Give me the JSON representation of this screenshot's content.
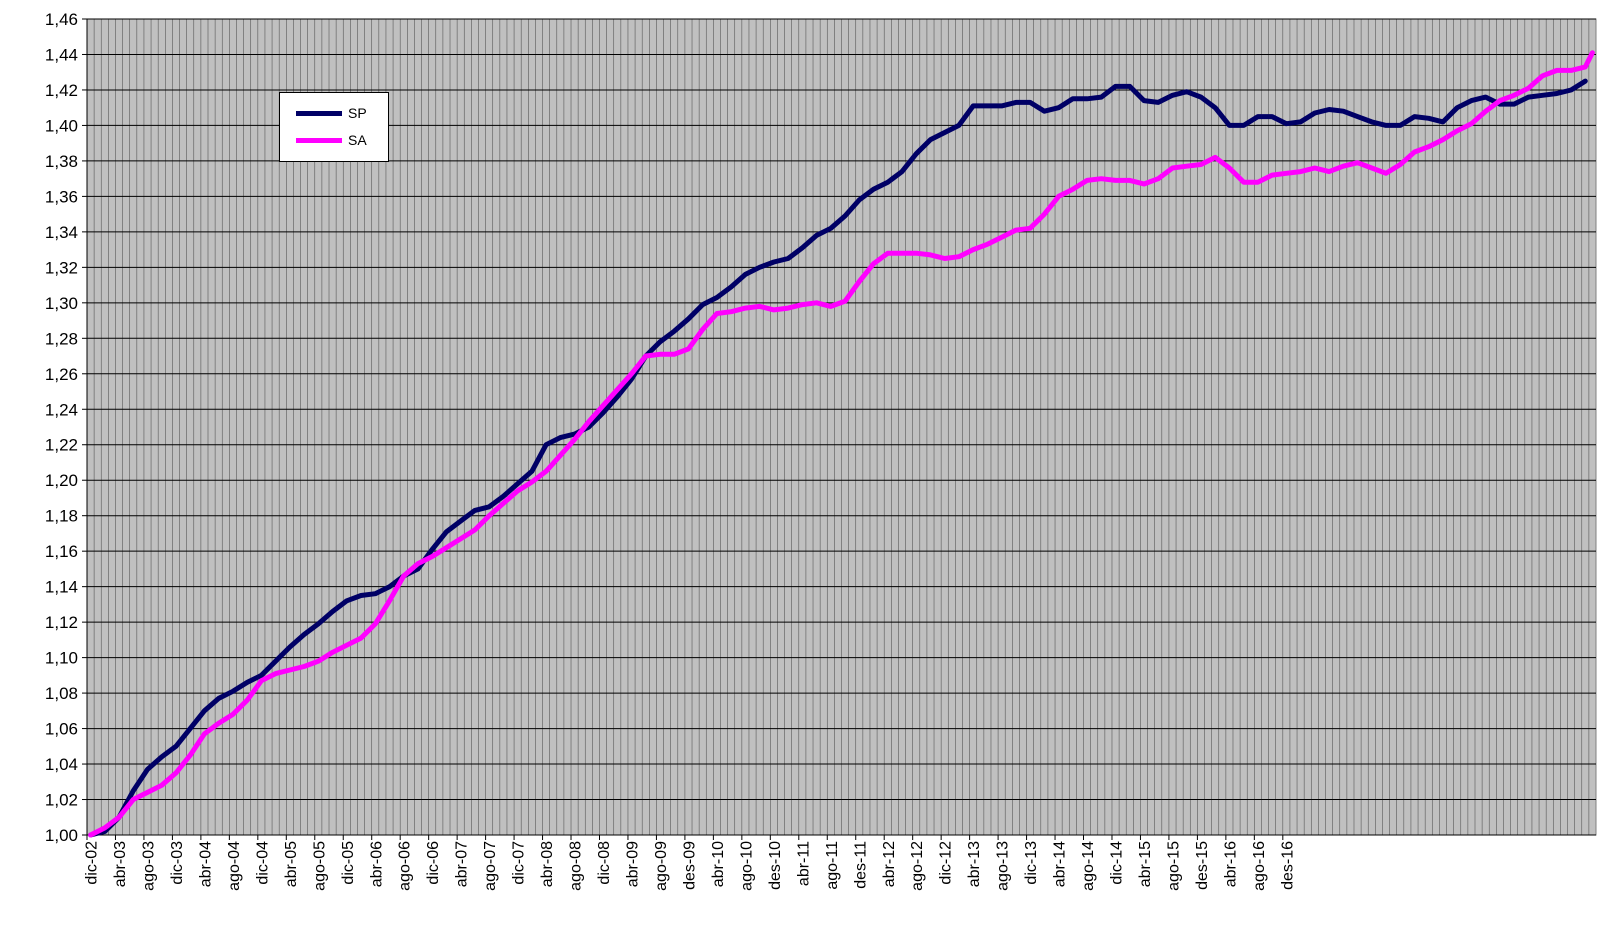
{
  "chart_data": {
    "type": "line",
    "title": "",
    "xlabel": "",
    "ylabel": "",
    "ylim": [
      1.0,
      1.46
    ],
    "y_ticks": [
      "1,00",
      "1,02",
      "1,04",
      "1,06",
      "1,08",
      "1,10",
      "1,12",
      "1,14",
      "1,16",
      "1,18",
      "1,20",
      "1,22",
      "1,24",
      "1,26",
      "1,28",
      "1,30",
      "1,32",
      "1,34",
      "1,36",
      "1,38",
      "1,40",
      "1,42",
      "1,44",
      "1,46"
    ],
    "x_tick_labels": [
      "dic-02",
      "abr-03",
      "ago-03",
      "dic-03",
      "abr-04",
      "ago-04",
      "dic-04",
      "abr-05",
      "ago-05",
      "dic-05",
      "abr-06",
      "ago-06",
      "dic-06",
      "abr-07",
      "ago-07",
      "dic-07",
      "abr-08",
      "ago-08",
      "dic-08",
      "abr-09",
      "ago-09",
      "des-09",
      "abr-10",
      "ago-10",
      "des-10",
      "abr-11",
      "ago-11",
      "des-11",
      "abr-12",
      "ago-12",
      "dic-12",
      "abr-13",
      "ago-13",
      "dic-13",
      "abr-14",
      "ago-14",
      "dic-14",
      "abr-15",
      "ago-15",
      "des-15",
      "abr-16",
      "ago-16",
      "des-16"
    ],
    "grid": true,
    "background": "#c0c0c0",
    "legend_position": "top-left",
    "series": [
      {
        "name": "SP",
        "color": "#000066",
        "points": [
          [
            0,
            1.0
          ],
          [
            2,
            1.002
          ],
          [
            4,
            1.01
          ],
          [
            6,
            1.025
          ],
          [
            8,
            1.037
          ],
          [
            10,
            1.044
          ],
          [
            12,
            1.05
          ],
          [
            14,
            1.06
          ],
          [
            16,
            1.07
          ],
          [
            18,
            1.077
          ],
          [
            20,
            1.081
          ],
          [
            22,
            1.086
          ],
          [
            24,
            1.09
          ],
          [
            26,
            1.098
          ],
          [
            28,
            1.106
          ],
          [
            30,
            1.113
          ],
          [
            32,
            1.119
          ],
          [
            34,
            1.126
          ],
          [
            36,
            1.132
          ],
          [
            38,
            1.135
          ],
          [
            40,
            1.136
          ],
          [
            42,
            1.14
          ],
          [
            44,
            1.146
          ],
          [
            46,
            1.15
          ],
          [
            48,
            1.161
          ],
          [
            50,
            1.171
          ],
          [
            52,
            1.177
          ],
          [
            54,
            1.183
          ],
          [
            56,
            1.185
          ],
          [
            58,
            1.191
          ],
          [
            60,
            1.198
          ],
          [
            62,
            1.205
          ],
          [
            64,
            1.22
          ],
          [
            66,
            1.224
          ],
          [
            68,
            1.226
          ],
          [
            70,
            1.23
          ],
          [
            72,
            1.238
          ],
          [
            74,
            1.247
          ],
          [
            76,
            1.257
          ],
          [
            78,
            1.27
          ],
          [
            80,
            1.278
          ],
          [
            82,
            1.284
          ],
          [
            84,
            1.291
          ],
          [
            86,
            1.299
          ],
          [
            88,
            1.303
          ],
          [
            90,
            1.309
          ],
          [
            92,
            1.316
          ],
          [
            94,
            1.32
          ],
          [
            96,
            1.323
          ],
          [
            98,
            1.325
          ],
          [
            100,
            1.331
          ],
          [
            102,
            1.338
          ],
          [
            104,
            1.342
          ],
          [
            106,
            1.349
          ],
          [
            108,
            1.358
          ],
          [
            110,
            1.364
          ],
          [
            112,
            1.368
          ],
          [
            114,
            1.374
          ],
          [
            116,
            1.384
          ],
          [
            118,
            1.392
          ],
          [
            120,
            1.396
          ],
          [
            122,
            1.4
          ],
          [
            124,
            1.411
          ],
          [
            126,
            1.411
          ],
          [
            128,
            1.411
          ],
          [
            130,
            1.413
          ],
          [
            132,
            1.413
          ],
          [
            134,
            1.408
          ],
          [
            136,
            1.41
          ],
          [
            138,
            1.415
          ],
          [
            140,
            1.415
          ],
          [
            142,
            1.416
          ],
          [
            144,
            1.422
          ],
          [
            146,
            1.422
          ],
          [
            148,
            1.414
          ],
          [
            150,
            1.413
          ],
          [
            152,
            1.417
          ],
          [
            154,
            1.419
          ],
          [
            156,
            1.416
          ],
          [
            158,
            1.41
          ],
          [
            160,
            1.4
          ],
          [
            162,
            1.4
          ],
          [
            164,
            1.405
          ],
          [
            166,
            1.405
          ],
          [
            168,
            1.401
          ],
          [
            170,
            1.402
          ],
          [
            172,
            1.407
          ],
          [
            174,
            1.409
          ],
          [
            176,
            1.408
          ],
          [
            178,
            1.405
          ],
          [
            180,
            1.402
          ],
          [
            182,
            1.4
          ],
          [
            184,
            1.4
          ],
          [
            186,
            1.405
          ],
          [
            188,
            1.404
          ],
          [
            190,
            1.402
          ],
          [
            192,
            1.41
          ],
          [
            194,
            1.414
          ],
          [
            196,
            1.416
          ],
          [
            198,
            1.412
          ],
          [
            200,
            1.412
          ],
          [
            202,
            1.416
          ],
          [
            204,
            1.417
          ],
          [
            206,
            1.418
          ],
          [
            208,
            1.42
          ],
          [
            210,
            1.425
          ]
        ]
      },
      {
        "name": "SA",
        "color": "#ff00ff",
        "points": [
          [
            0,
            1.0
          ],
          [
            2,
            1.004
          ],
          [
            4,
            1.01
          ],
          [
            6,
            1.02
          ],
          [
            8,
            1.024
          ],
          [
            10,
            1.028
          ],
          [
            12,
            1.035
          ],
          [
            14,
            1.045
          ],
          [
            16,
            1.057
          ],
          [
            18,
            1.063
          ],
          [
            20,
            1.068
          ],
          [
            22,
            1.076
          ],
          [
            24,
            1.087
          ],
          [
            26,
            1.091
          ],
          [
            28,
            1.093
          ],
          [
            30,
            1.095
          ],
          [
            32,
            1.098
          ],
          [
            34,
            1.103
          ],
          [
            36,
            1.107
          ],
          [
            38,
            1.111
          ],
          [
            40,
            1.119
          ],
          [
            42,
            1.132
          ],
          [
            44,
            1.146
          ],
          [
            46,
            1.153
          ],
          [
            48,
            1.157
          ],
          [
            50,
            1.162
          ],
          [
            52,
            1.167
          ],
          [
            54,
            1.172
          ],
          [
            56,
            1.18
          ],
          [
            58,
            1.187
          ],
          [
            60,
            1.194
          ],
          [
            62,
            1.199
          ],
          [
            64,
            1.205
          ],
          [
            66,
            1.214
          ],
          [
            68,
            1.223
          ],
          [
            70,
            1.233
          ],
          [
            72,
            1.242
          ],
          [
            74,
            1.251
          ],
          [
            76,
            1.26
          ],
          [
            78,
            1.27
          ],
          [
            80,
            1.271
          ],
          [
            82,
            1.271
          ],
          [
            84,
            1.274
          ],
          [
            86,
            1.285
          ],
          [
            88,
            1.294
          ],
          [
            90,
            1.295
          ],
          [
            92,
            1.297
          ],
          [
            94,
            1.298
          ],
          [
            96,
            1.296
          ],
          [
            98,
            1.297
          ],
          [
            100,
            1.299
          ],
          [
            102,
            1.3
          ],
          [
            104,
            1.298
          ],
          [
            106,
            1.301
          ],
          [
            108,
            1.312
          ],
          [
            110,
            1.322
          ],
          [
            112,
            1.328
          ],
          [
            114,
            1.328
          ],
          [
            116,
            1.328
          ],
          [
            118,
            1.327
          ],
          [
            120,
            1.325
          ],
          [
            122,
            1.326
          ],
          [
            124,
            1.33
          ],
          [
            126,
            1.333
          ],
          [
            128,
            1.337
          ],
          [
            130,
            1.341
          ],
          [
            132,
            1.342
          ],
          [
            134,
            1.35
          ],
          [
            136,
            1.36
          ],
          [
            138,
            1.364
          ],
          [
            140,
            1.369
          ],
          [
            142,
            1.37
          ],
          [
            144,
            1.369
          ],
          [
            146,
            1.369
          ],
          [
            148,
            1.367
          ],
          [
            150,
            1.37
          ],
          [
            152,
            1.376
          ],
          [
            154,
            1.377
          ],
          [
            156,
            1.378
          ],
          [
            158,
            1.382
          ],
          [
            160,
            1.376
          ],
          [
            162,
            1.368
          ],
          [
            164,
            1.368
          ],
          [
            166,
            1.372
          ],
          [
            168,
            1.373
          ],
          [
            170,
            1.374
          ],
          [
            172,
            1.376
          ],
          [
            174,
            1.374
          ],
          [
            176,
            1.377
          ],
          [
            178,
            1.379
          ],
          [
            180,
            1.376
          ],
          [
            182,
            1.373
          ],
          [
            184,
            1.378
          ],
          [
            186,
            1.385
          ],
          [
            188,
            1.388
          ],
          [
            190,
            1.392
          ],
          [
            192,
            1.397
          ],
          [
            194,
            1.401
          ],
          [
            196,
            1.408
          ],
          [
            198,
            1.414
          ],
          [
            200,
            1.417
          ],
          [
            202,
            1.421
          ],
          [
            204,
            1.428
          ],
          [
            206,
            1.431
          ],
          [
            208,
            1.431
          ],
          [
            210,
            1.433
          ],
          [
            211,
            1.441
          ]
        ]
      }
    ]
  },
  "legend": {
    "items": [
      {
        "label": "SP",
        "color": "#000066"
      },
      {
        "label": "SA",
        "color": "#ff00ff"
      }
    ]
  }
}
